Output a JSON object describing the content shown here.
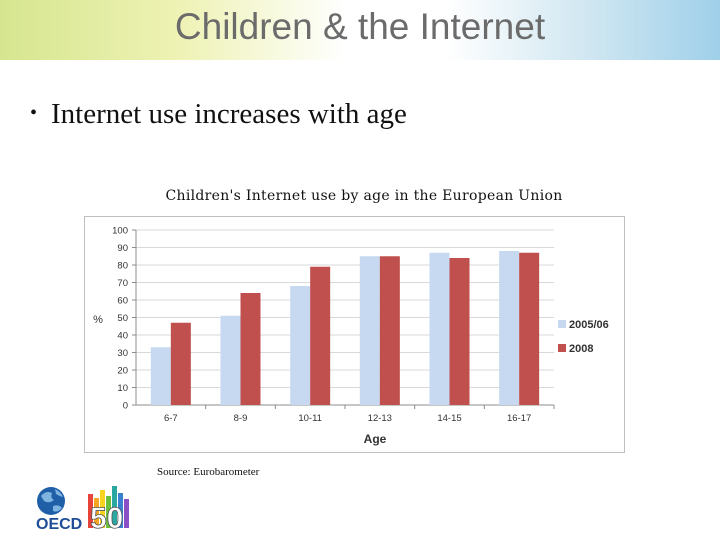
{
  "slide": {
    "title": "Children & the Internet",
    "bullet": "Internet use increases with age",
    "source": "Source: Eurobarometer"
  },
  "logo": {
    "org": "OECD",
    "anniversary": "50",
    "colors": {
      "globe": "#1f5fa8",
      "text": "#1f4e96"
    }
  },
  "chart_data": {
    "type": "bar",
    "title": "Children's Internet use by age in the European Union",
    "xlabel": "Age",
    "ylabel": "%",
    "ylim": [
      0,
      100
    ],
    "yticks": [
      0,
      10,
      20,
      30,
      40,
      50,
      60,
      70,
      80,
      90,
      100
    ],
    "grid": true,
    "legend_position": "right",
    "categories": [
      "6-7",
      "8-9",
      "10-11",
      "12-13",
      "14-15",
      "16-17"
    ],
    "series": [
      {
        "name": "2005/06",
        "color": "#c6d9f1",
        "values": [
          33,
          51,
          68,
          85,
          87,
          88
        ]
      },
      {
        "name": "2008",
        "color": "#c0504d",
        "values": [
          47,
          64,
          79,
          85,
          84,
          87
        ]
      }
    ]
  }
}
